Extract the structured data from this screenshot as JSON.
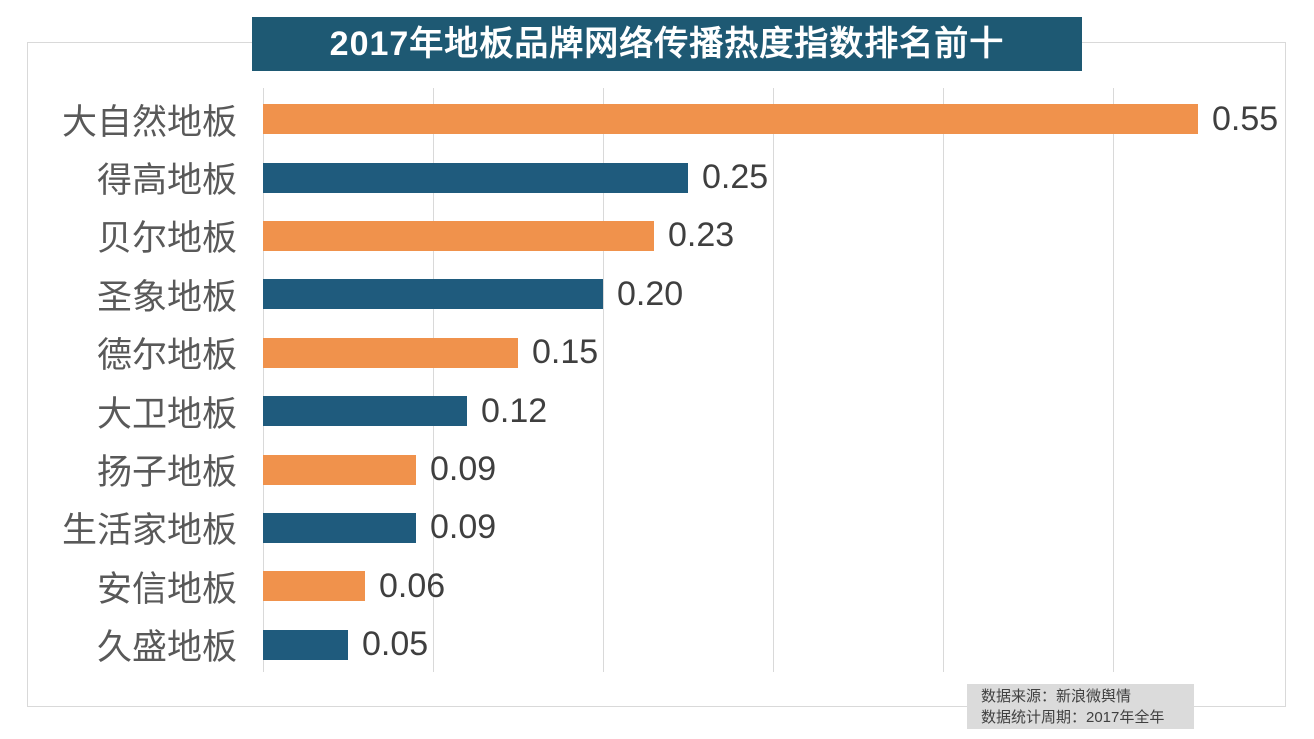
{
  "title": "2017年地板品牌网络传播热度指数排名前十",
  "colors": {
    "orange": "#f0924c",
    "teal": "#1f5b7d",
    "title_bg": "#1e5973",
    "grid": "#d9d9d9",
    "category_text": "#595959",
    "value_text": "#3f3f3f",
    "note_bg": "#dbdbdb",
    "note_text": "#404040"
  },
  "footer": {
    "line1": "数据来源：新浪微舆情",
    "line2": "数据统计周期：2017年全年"
  },
  "chart_data": {
    "type": "bar",
    "orientation": "horizontal",
    "title": "2017年地板品牌网络传播热度指数排名前十",
    "categories": [
      "大自然地板",
      "得高地板",
      "贝尔地板",
      "圣象地板",
      "德尔地板",
      "大卫地板",
      "扬子地板",
      "生活家地板",
      "安信地板",
      "久盛地板"
    ],
    "values": [
      0.55,
      0.25,
      0.23,
      0.2,
      0.15,
      0.12,
      0.09,
      0.09,
      0.06,
      0.05
    ],
    "value_labels": [
      "0.55",
      "0.25",
      "0.23",
      "0.20",
      "0.15",
      "0.12",
      "0.09",
      "0.09",
      "0.06",
      "0.05"
    ],
    "bar_colors": [
      "orange",
      "teal",
      "orange",
      "teal",
      "orange",
      "teal",
      "orange",
      "teal",
      "orange",
      "teal"
    ],
    "xlabel": "",
    "ylabel": "",
    "xlim": [
      0,
      0.6
    ],
    "gridline_interval": 0.1,
    "grid": true,
    "legend": false,
    "data_labels": true,
    "source_note": "数据来源：新浪微舆情",
    "period_note": "数据统计周期：2017年全年"
  }
}
